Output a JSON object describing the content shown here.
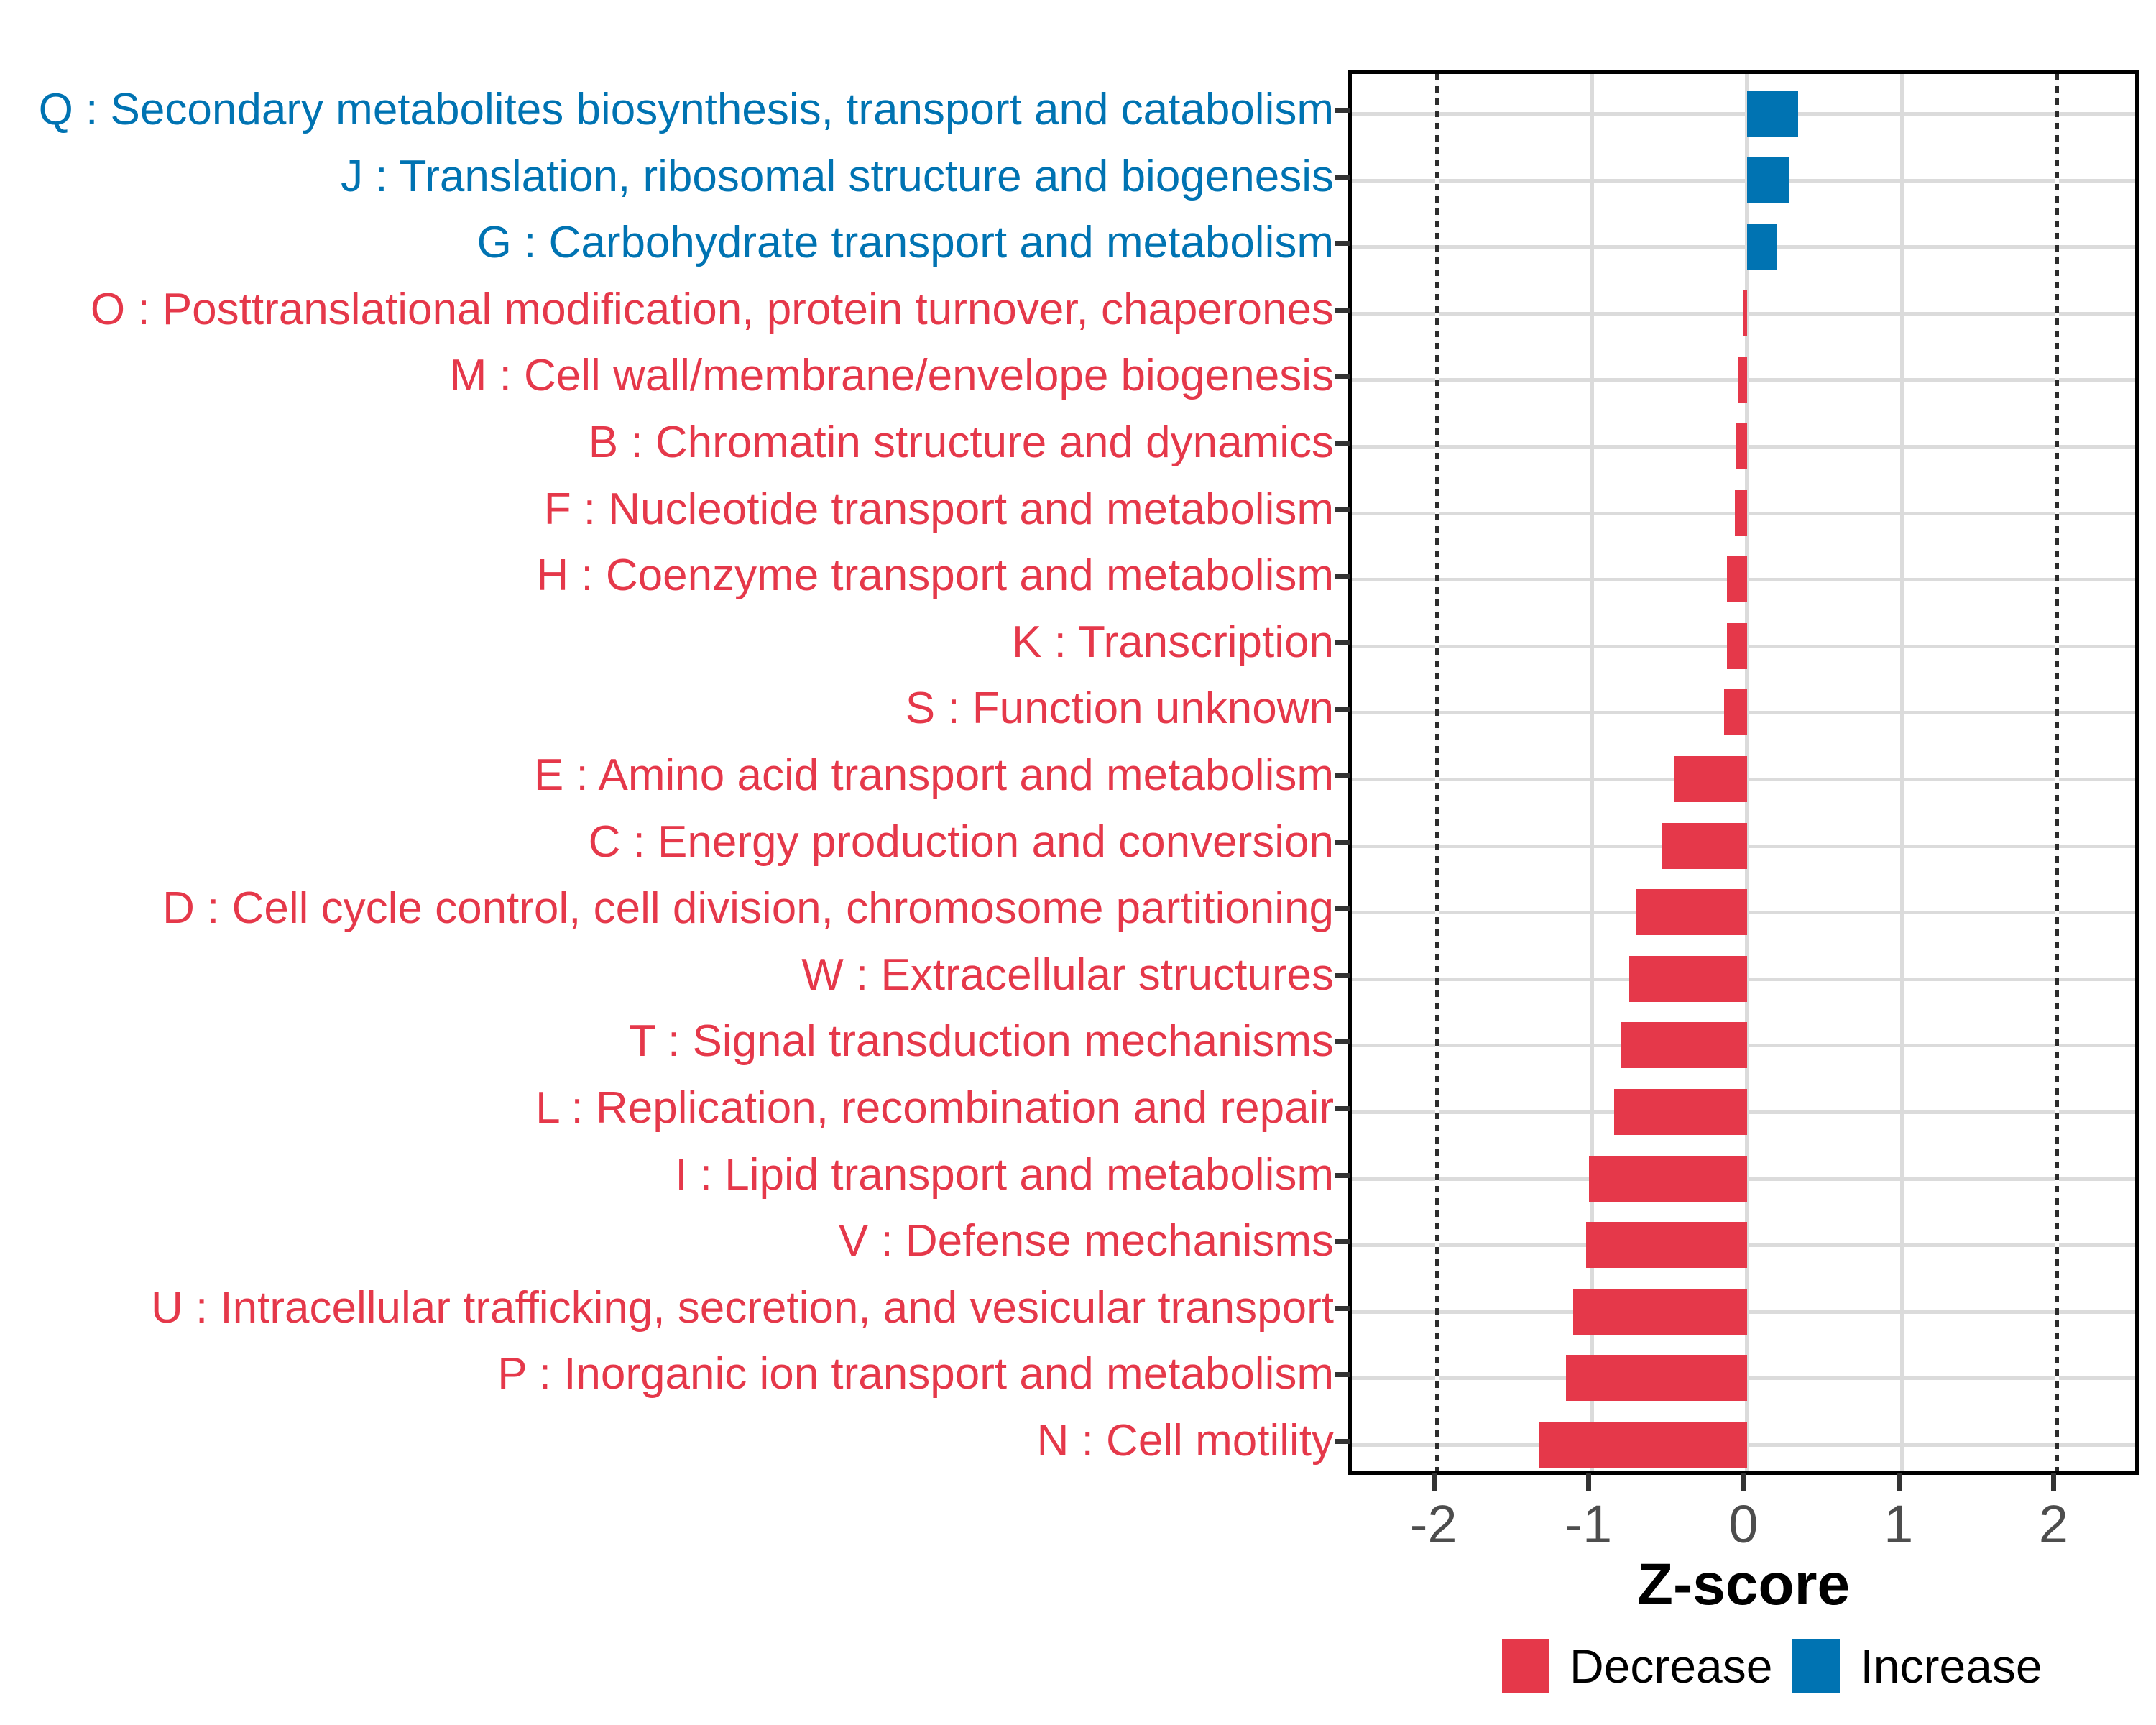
{
  "chart_data": {
    "type": "bar",
    "orientation": "horizontal",
    "title": "",
    "xlabel": "Z-score",
    "xlim": [
      -2.55,
      2.55
    ],
    "x_ticks": [
      -2,
      -1,
      0,
      1,
      2
    ],
    "reference_lines_dotted": [
      -2,
      2
    ],
    "grid": "on",
    "legend_position": "bottom",
    "legend": [
      {
        "label": "Decrease",
        "color": "#E5384A"
      },
      {
        "label": "Increase",
        "color": "#0073B2"
      }
    ],
    "categories": [
      {
        "label": "Q : Secondary metabolites biosynthesis, transport and catabolism",
        "value": 0.33,
        "direction": "Increase"
      },
      {
        "label": "J : Translation, ribosomal structure and biogenesis",
        "value": 0.27,
        "direction": "Increase"
      },
      {
        "label": "G : Carbohydrate transport and metabolism",
        "value": 0.19,
        "direction": "Increase"
      },
      {
        "label": "O : Posttranslational modification, protein turnover, chaperones",
        "value": -0.03,
        "direction": "Decrease"
      },
      {
        "label": "M : Cell wall/membrane/envelope biogenesis",
        "value": -0.06,
        "direction": "Decrease"
      },
      {
        "label": "B : Chromatin structure and dynamics",
        "value": -0.07,
        "direction": "Decrease"
      },
      {
        "label": "F : Nucleotide transport and metabolism",
        "value": -0.08,
        "direction": "Decrease"
      },
      {
        "label": "H : Coenzyme transport and metabolism",
        "value": -0.13,
        "direction": "Decrease"
      },
      {
        "label": "K : Transcription",
        "value": -0.13,
        "direction": "Decrease"
      },
      {
        "label": "S : Function unknown",
        "value": -0.15,
        "direction": "Decrease"
      },
      {
        "label": "E : Amino acid transport and metabolism",
        "value": -0.47,
        "direction": "Decrease"
      },
      {
        "label": "C : Energy production and conversion",
        "value": -0.55,
        "direction": "Decrease"
      },
      {
        "label": "D : Cell cycle control, cell division, chromosome partitioning",
        "value": -0.72,
        "direction": "Decrease"
      },
      {
        "label": "W : Extracellular structures",
        "value": -0.76,
        "direction": "Decrease"
      },
      {
        "label": "T : Signal transduction mechanisms",
        "value": -0.81,
        "direction": "Decrease"
      },
      {
        "label": "L : Replication, recombination and repair",
        "value": -0.86,
        "direction": "Decrease"
      },
      {
        "label": "I : Lipid transport and metabolism",
        "value": -1.02,
        "direction": "Decrease"
      },
      {
        "label": "V : Defense mechanisms",
        "value": -1.04,
        "direction": "Decrease"
      },
      {
        "label": "U : Intracellular trafficking, secretion, and vesicular transport",
        "value": -1.12,
        "direction": "Decrease"
      },
      {
        "label": "P : Inorganic ion transport and metabolism",
        "value": -1.17,
        "direction": "Decrease"
      },
      {
        "label": "N : Cell motility",
        "value": -1.34,
        "direction": "Decrease"
      }
    ]
  },
  "colors": {
    "decrease": "#E5384A",
    "increase": "#0073B2",
    "grid": "#DBDBDB",
    "axis_text": "#4D4D4D",
    "refline": "#2B2B2B",
    "panel_border": "#000000"
  }
}
